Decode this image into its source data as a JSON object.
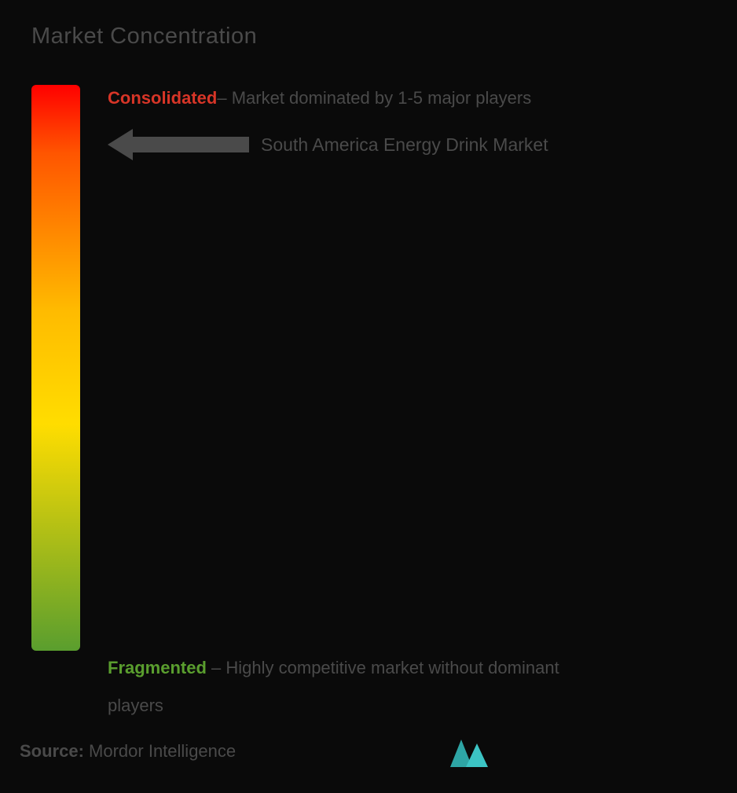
{
  "title": "Market Concentration",
  "gradient": {
    "color_top": "#ff0000",
    "color_upper_mid": "#ff5500",
    "color_mid": "#ffbb00",
    "color_lower_mid": "#ffdd00",
    "color_bottom": "#5a9e2e"
  },
  "consolidated": {
    "term": "Consolidated",
    "term_color": "#d73527",
    "description": "– Market dominated by 1-5 major players"
  },
  "market_label": "South America Energy Drink Market",
  "arrow": {
    "color": "#4a4a4a"
  },
  "fragmented": {
    "term": "Fragmented",
    "term_color": "#5a9e2e",
    "description_line1": " – Highly competitive market without dominant",
    "description_line2": "players"
  },
  "source": {
    "label": "Source:",
    "value": " Mordor Intelligence"
  },
  "logo_colors": {
    "primary": "#2ea5a5",
    "secondary": "#3cc4c4"
  },
  "background_color": "#0a0a0a",
  "text_color": "#4a4a4a"
}
